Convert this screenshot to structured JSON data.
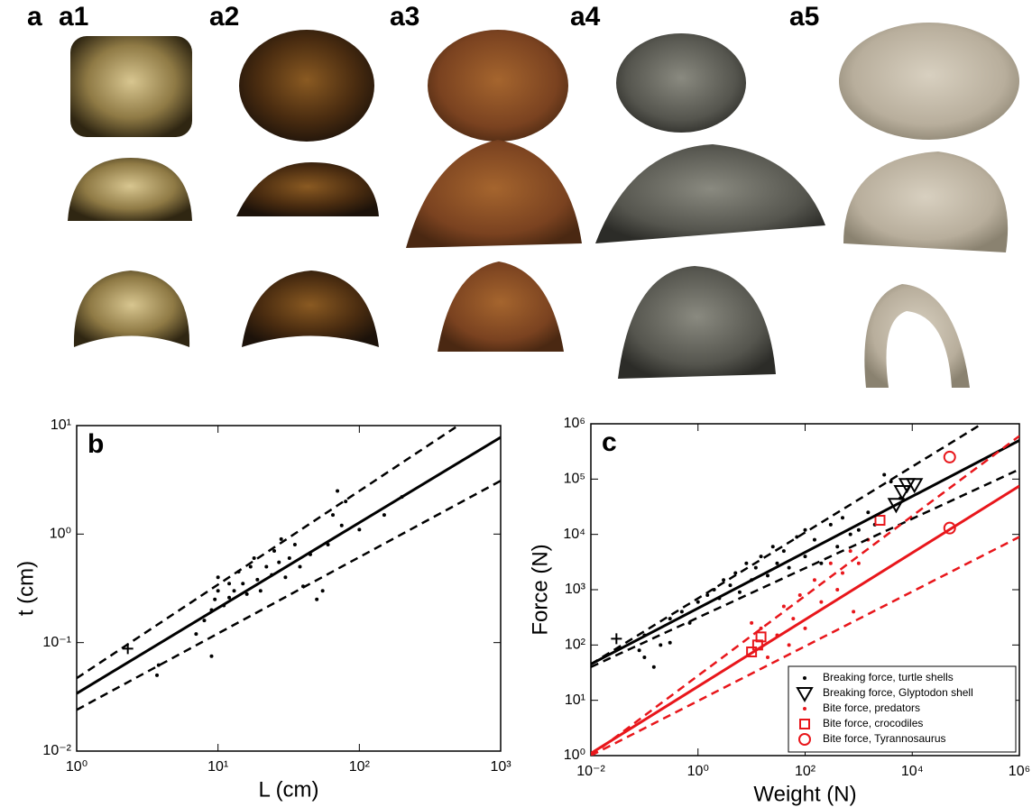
{
  "figure_labels": {
    "panel": "a",
    "photos": [
      "a1",
      "a2",
      "a3",
      "a4",
      "a5"
    ]
  },
  "chart_data": [
    {
      "type": "scatter",
      "panel_label": "b",
      "xlabel": "L (cm)",
      "ylabel": "t (cm)",
      "xscale": "log",
      "yscale": "log",
      "xlim": [
        1,
        1000
      ],
      "ylim": [
        0.01,
        10
      ],
      "xticks": [
        {
          "value": 1,
          "label": "10⁰"
        },
        {
          "value": 10,
          "label": "10¹"
        },
        {
          "value": 100,
          "label": "10²"
        },
        {
          "value": 1000,
          "label": "10³"
        }
      ],
      "yticks": [
        {
          "value": 0.01,
          "label": "10⁻²"
        },
        {
          "value": 0.1,
          "label": "10⁻¹"
        },
        {
          "value": 1,
          "label": "10⁰"
        },
        {
          "value": 10,
          "label": "10¹"
        }
      ],
      "series": [
        {
          "marker": "dot",
          "color": "#000000",
          "x": [
            3.7,
            3.8,
            7,
            8,
            9,
            9,
            9.5,
            10,
            10,
            11,
            12,
            12,
            13,
            14,
            15,
            16,
            17,
            18,
            19,
            20,
            22,
            24,
            25,
            27,
            28,
            30,
            32,
            35,
            38,
            40,
            45,
            50,
            55,
            60,
            65,
            70,
            75,
            80,
            100,
            150,
            200
          ],
          "values": [
            0.05,
            0.062,
            0.12,
            0.16,
            0.075,
            0.2,
            0.25,
            0.3,
            0.4,
            0.22,
            0.35,
            0.26,
            0.3,
            0.45,
            0.35,
            0.28,
            0.5,
            0.6,
            0.38,
            0.3,
            0.5,
            0.42,
            0.7,
            0.55,
            0.9,
            0.4,
            0.6,
            0.8,
            0.5,
            0.33,
            0.65,
            0.25,
            0.3,
            0.8,
            1.5,
            2.5,
            1.2,
            2.0,
            1.1,
            1.5,
            2.2
          ]
        },
        {
          "marker": "cross",
          "color": "#000000",
          "x": [
            2.3
          ],
          "values": [
            0.088
          ]
        },
        {
          "marker": "line",
          "dash": false,
          "color": "#000000",
          "x": [
            1,
            1000
          ],
          "values": [
            0.034,
            7.8
          ]
        },
        {
          "marker": "line",
          "dash": true,
          "color": "#000000",
          "x": [
            1,
            500
          ],
          "values": [
            0.047,
            10
          ]
        },
        {
          "marker": "line",
          "dash": true,
          "color": "#000000",
          "x": [
            1,
            1000
          ],
          "values": [
            0.024,
            3.1
          ]
        }
      ]
    },
    {
      "type": "scatter",
      "panel_label": "c",
      "xlabel": "Weight (N)",
      "ylabel": "Force (N)",
      "xscale": "log",
      "yscale": "log",
      "xlim": [
        0.01,
        1000000
      ],
      "ylim": [
        1,
        1000000
      ],
      "legend": "lower right",
      "xticks": [
        {
          "value": 0.01,
          "label": "10⁻²"
        },
        {
          "value": 1,
          "label": "10⁰"
        },
        {
          "value": 100,
          "label": "10²"
        },
        {
          "value": 10000,
          "label": "10⁴"
        },
        {
          "value": 1000000,
          "label": "10⁶"
        }
      ],
      "yticks": [
        {
          "value": 1,
          "label": "10⁰"
        },
        {
          "value": 10,
          "label": "10¹"
        },
        {
          "value": 100,
          "label": "10²"
        },
        {
          "value": 1000,
          "label": "10³"
        },
        {
          "value": 10000,
          "label": "10⁴"
        },
        {
          "value": 100000,
          "label": "10⁵"
        },
        {
          "value": 1000000,
          "label": "10⁶"
        }
      ],
      "series": [
        {
          "name": "Breaking force, turtle shells",
          "marker": "dot",
          "color": "#000000",
          "x": [
            0.08,
            0.1,
            0.15,
            0.2,
            0.3,
            0.5,
            0.7,
            1,
            1.5,
            2,
            2.5,
            3,
            4,
            5,
            6,
            8,
            10,
            12,
            15,
            20,
            25,
            30,
            40,
            50,
            70,
            100,
            100,
            150,
            200,
            300,
            400,
            500,
            700,
            1000,
            1500,
            2000,
            3000,
            4000,
            6000,
            0.1,
            0.3
          ],
          "values": [
            80,
            150,
            40,
            100,
            300,
            400,
            250,
            600,
            800,
            1000,
            700,
            1500,
            1200,
            2000,
            900,
            3000,
            1500,
            2500,
            4000,
            1800,
            6000,
            3000,
            5000,
            2500,
            9000,
            4000,
            12000,
            8000,
            3000,
            15000,
            6000,
            20000,
            10000,
            12000,
            25000,
            15000,
            120000,
            90000,
            45000,
            60,
            110
          ]
        },
        {
          "name": "Breaking force, Glyptodon shell",
          "marker": "triangle",
          "color": "#000000",
          "x": [
            5000,
            6500,
            8000,
            11000
          ],
          "values": [
            35000,
            60000,
            80000,
            80000
          ]
        },
        {
          "name": "Bite force, predators",
          "marker": "dot",
          "color": "#e8161b",
          "x": [
            10,
            15,
            20,
            30,
            40,
            60,
            80,
            100,
            150,
            200,
            300,
            400,
            500,
            700,
            800,
            1000,
            1500,
            50
          ],
          "values": [
            250,
            200,
            60,
            150,
            500,
            300,
            800,
            200,
            1500,
            600,
            3000,
            1000,
            2000,
            5000,
            400,
            3000,
            8000,
            100
          ]
        },
        {
          "name": "Bite force, crocodiles",
          "marker": "square",
          "color": "#e8161b",
          "x": [
            10,
            13,
            15,
            2500
          ],
          "values": [
            75,
            100,
            140,
            18000
          ]
        },
        {
          "name": "Bite force, Tyrannosaurus",
          "marker": "circle",
          "color": "#e8161b",
          "x": [
            50000,
            50000
          ],
          "values": [
            13000,
            250000
          ]
        },
        {
          "marker": "cross",
          "color": "#000000",
          "x": [
            0.03
          ],
          "values": [
            130
          ]
        },
        {
          "marker": "line",
          "dash": false,
          "color": "#000000",
          "x": [
            0.01,
            1000000
          ],
          "values": [
            45,
            500000
          ]
        },
        {
          "marker": "line",
          "dash": true,
          "color": "#000000",
          "x": [
            0.01,
            200000
          ],
          "values": [
            45,
            1000000
          ]
        },
        {
          "marker": "line",
          "dash": true,
          "color": "#000000",
          "x": [
            0.01,
            1000000
          ],
          "values": [
            40,
            150000
          ]
        },
        {
          "marker": "line",
          "dash": false,
          "color": "#e8161b",
          "x": [
            0.01,
            1000000
          ],
          "values": [
            1.1,
            75000
          ]
        },
        {
          "marker": "line",
          "dash": true,
          "color": "#e8161b",
          "x": [
            0.01,
            1000000
          ],
          "values": [
            1,
            600000
          ]
        },
        {
          "marker": "line",
          "dash": true,
          "color": "#e8161b",
          "x": [
            0.01,
            1000000
          ],
          "values": [
            1,
            9000
          ]
        }
      ]
    }
  ]
}
